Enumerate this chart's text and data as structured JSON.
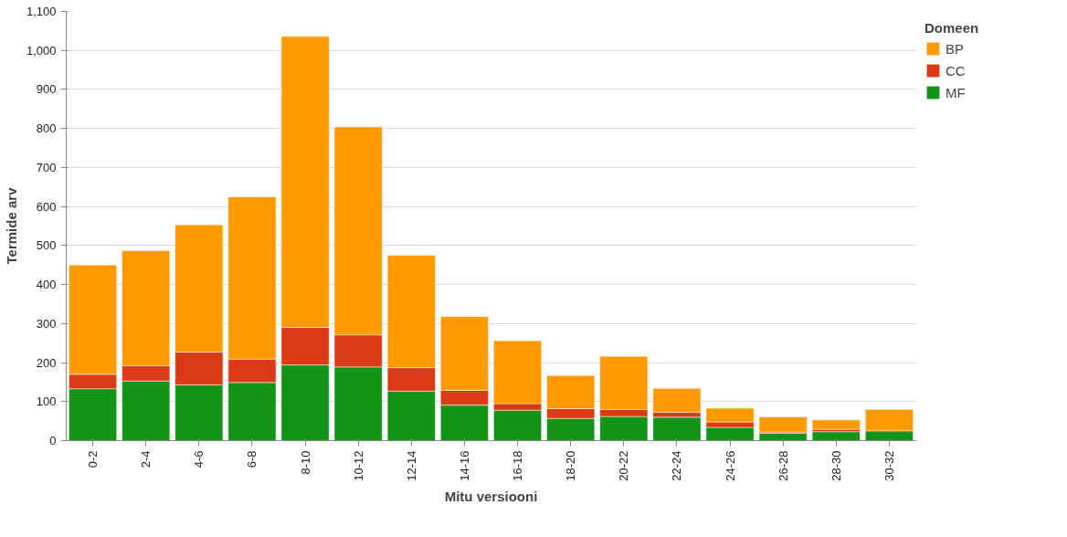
{
  "chart_data": {
    "type": "bar",
    "stacked": true,
    "xlabel": "Mitu versiooni",
    "ylabel": "Termide arv",
    "legend_title": "Domeen",
    "legend": "right",
    "grid": "y",
    "categories": [
      "0-2",
      "2-4",
      "4-6",
      "6-8",
      "8-10",
      "10-12",
      "12-14",
      "14-16",
      "16-18",
      "18-20",
      "20-22",
      "22-24",
      "24-26",
      "26-28",
      "28-30",
      "30-32"
    ],
    "ylim": [
      0,
      1100
    ],
    "yticks": [
      0,
      100,
      200,
      300,
      400,
      500,
      600,
      700,
      800,
      900,
      {
        "value": 1000,
        "label": "1,000"
      },
      {
        "value": 1100,
        "label": "1,100"
      }
    ],
    "series": [
      {
        "name": "MF",
        "color": "#139419",
        "values": [
          133,
          153,
          143,
          149,
          194,
          189,
          127,
          91,
          78,
          57,
          62,
          60,
          34,
          19,
          23,
          25
        ]
      },
      {
        "name": "CC",
        "color": "#dc3a14",
        "values": [
          37,
          39,
          84,
          60,
          96,
          82,
          60,
          38,
          17,
          25,
          18,
          13,
          14,
          3,
          6,
          0
        ]
      },
      {
        "name": "BP",
        "color": "#ff9a00",
        "values": [
          280,
          295,
          326,
          416,
          746,
          533,
          288,
          189,
          161,
          85,
          136,
          61,
          35,
          39,
          24,
          55
        ]
      }
    ]
  }
}
